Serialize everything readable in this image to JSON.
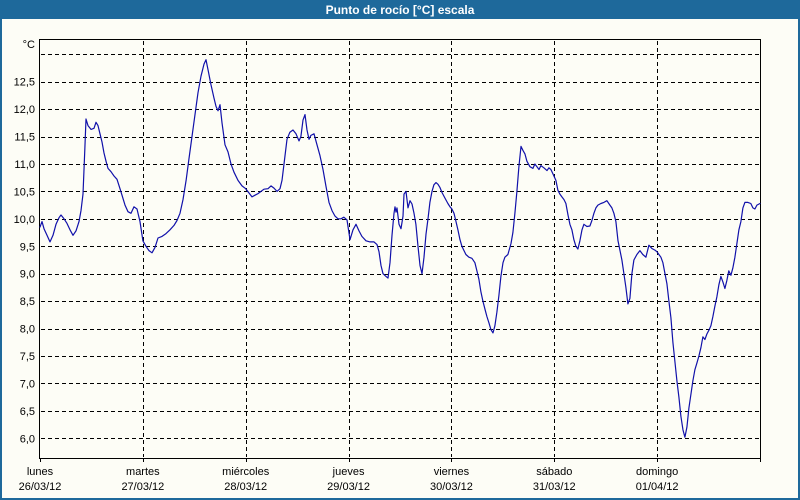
{
  "window": {
    "title": "Punto de rocío [°C] escala"
  },
  "colors": {
    "titlebar_bg": "#1e699b",
    "titlebar_text": "#ffffff",
    "frame": "#1e699b",
    "plot_bg": "#fdfdf6",
    "grid": "#000000",
    "axis": "#000000",
    "label_text": "#000000",
    "line": "#1111aa"
  },
  "chart_data": {
    "type": "line",
    "title": "Punto de rocío [°C] escala",
    "y_unit_label": "°C",
    "ylabel": "",
    "xlabel": "",
    "ylim": [
      5.64,
      13.26
    ],
    "y_grid_step": 0.5,
    "y_grid_values": [
      6.0,
      6.5,
      7.0,
      7.5,
      8.0,
      8.5,
      9.0,
      9.5,
      10.0,
      10.5,
      11.0,
      11.5,
      12.0,
      12.5,
      13.0
    ],
    "y_tick_labels": [
      "6,0",
      "6,5",
      "7,0",
      "7,5",
      "8,0",
      "8,5",
      "9,0",
      "9,5",
      "10,0",
      "10,5",
      "11,0",
      "11,5",
      "12,0",
      "12,5"
    ],
    "grid": "dashed",
    "legend_position": "none",
    "x_range_days": [
      0,
      7
    ],
    "x_categories": [
      {
        "day": "lunes",
        "date": "26/03/12"
      },
      {
        "day": "martes",
        "date": "27/03/12"
      },
      {
        "day": "miércoles",
        "date": "28/03/12"
      },
      {
        "day": "jueves",
        "date": "29/03/12"
      },
      {
        "day": "viernes",
        "date": "30/03/12"
      },
      {
        "day": "sábado",
        "date": "31/03/12"
      },
      {
        "day": "domingo",
        "date": "01/04/12"
      }
    ],
    "series": [
      {
        "name": "Punto de rocío",
        "points": [
          [
            0,
            9.85
          ],
          [
            0.019,
            9.95
          ],
          [
            0.039,
            9.82
          ],
          [
            0.068,
            9.7
          ],
          [
            0.097,
            9.58
          ],
          [
            0.126,
            9.7
          ],
          [
            0.156,
            9.9
          ],
          [
            0.185,
            10.02
          ],
          [
            0.204,
            10.07
          ],
          [
            0.233,
            10.0
          ],
          [
            0.262,
            9.92
          ],
          [
            0.292,
            9.8
          ],
          [
            0.321,
            9.7
          ],
          [
            0.35,
            9.78
          ],
          [
            0.379,
            9.95
          ],
          [
            0.399,
            10.15
          ],
          [
            0.418,
            10.45
          ],
          [
            0.437,
            11.3
          ],
          [
            0.447,
            11.82
          ],
          [
            0.467,
            11.7
          ],
          [
            0.496,
            11.63
          ],
          [
            0.525,
            11.65
          ],
          [
            0.544,
            11.76
          ],
          [
            0.564,
            11.7
          ],
          [
            0.583,
            11.55
          ],
          [
            0.603,
            11.4
          ],
          [
            0.622,
            11.2
          ],
          [
            0.642,
            11.05
          ],
          [
            0.661,
            10.92
          ],
          [
            0.69,
            10.86
          ],
          [
            0.719,
            10.78
          ],
          [
            0.749,
            10.72
          ],
          [
            0.778,
            10.55
          ],
          [
            0.797,
            10.43
          ],
          [
            0.826,
            10.25
          ],
          [
            0.856,
            10.13
          ],
          [
            0.885,
            10.1
          ],
          [
            0.914,
            10.22
          ],
          [
            0.943,
            10.18
          ],
          [
            0.972,
            9.95
          ],
          [
            1,
            9.6
          ],
          [
            1.031,
            9.5
          ],
          [
            1.06,
            9.42
          ],
          [
            1.089,
            9.38
          ],
          [
            1.118,
            9.48
          ],
          [
            1.147,
            9.65
          ],
          [
            1.186,
            9.68
          ],
          [
            1.225,
            9.73
          ],
          [
            1.264,
            9.8
          ],
          [
            1.303,
            9.88
          ],
          [
            1.332,
            9.97
          ],
          [
            1.361,
            10.1
          ],
          [
            1.39,
            10.35
          ],
          [
            1.42,
            10.7
          ],
          [
            1.449,
            11.1
          ],
          [
            1.478,
            11.5
          ],
          [
            1.507,
            11.9
          ],
          [
            1.536,
            12.3
          ],
          [
            1.565,
            12.6
          ],
          [
            1.594,
            12.82
          ],
          [
            1.614,
            12.9
          ],
          [
            1.633,
            12.72
          ],
          [
            1.662,
            12.45
          ],
          [
            1.692,
            12.2
          ],
          [
            1.711,
            12.05
          ],
          [
            1.731,
            11.97
          ],
          [
            1.75,
            12.08
          ],
          [
            1.769,
            11.75
          ],
          [
            1.799,
            11.35
          ],
          [
            1.828,
            11.22
          ],
          [
            1.857,
            11.0
          ],
          [
            1.886,
            10.85
          ],
          [
            1.925,
            10.7
          ],
          [
            1.964,
            10.6
          ],
          [
            2,
            10.55
          ],
          [
            2.032,
            10.47
          ],
          [
            2.061,
            10.4
          ],
          [
            2.09,
            10.43
          ],
          [
            2.119,
            10.46
          ],
          [
            2.149,
            10.5
          ],
          [
            2.178,
            10.54
          ],
          [
            2.217,
            10.55
          ],
          [
            2.246,
            10.6
          ],
          [
            2.275,
            10.56
          ],
          [
            2.304,
            10.5
          ],
          [
            2.333,
            10.55
          ],
          [
            2.353,
            10.7
          ],
          [
            2.372,
            11.0
          ],
          [
            2.401,
            11.45
          ],
          [
            2.43,
            11.58
          ],
          [
            2.46,
            11.62
          ],
          [
            2.489,
            11.55
          ],
          [
            2.518,
            11.42
          ],
          [
            2.537,
            11.5
          ],
          [
            2.557,
            11.8
          ],
          [
            2.576,
            11.9
          ],
          [
            2.596,
            11.62
          ],
          [
            2.615,
            11.45
          ],
          [
            2.634,
            11.52
          ],
          [
            2.664,
            11.55
          ],
          [
            2.693,
            11.35
          ],
          [
            2.722,
            11.15
          ],
          [
            2.751,
            10.9
          ],
          [
            2.78,
            10.6
          ],
          [
            2.81,
            10.3
          ],
          [
            2.839,
            10.15
          ],
          [
            2.868,
            10.05
          ],
          [
            2.897,
            10.0
          ],
          [
            2.926,
            10.0
          ],
          [
            2.955,
            10.03
          ],
          [
            2.985,
            9.98
          ],
          [
            3.014,
            9.62
          ],
          [
            3.043,
            9.8
          ],
          [
            3.072,
            9.9
          ],
          [
            3.101,
            9.78
          ],
          [
            3.13,
            9.68
          ],
          [
            3.169,
            9.6
          ],
          [
            3.208,
            9.58
          ],
          [
            3.247,
            9.58
          ],
          [
            3.276,
            9.53
          ],
          [
            3.296,
            9.4
          ],
          [
            3.315,
            9.15
          ],
          [
            3.335,
            9.0
          ],
          [
            3.364,
            8.95
          ],
          [
            3.383,
            8.92
          ],
          [
            3.403,
            9.2
          ],
          [
            3.422,
            9.7
          ],
          [
            3.442,
            10.1
          ],
          [
            3.451,
            10.22
          ],
          [
            3.461,
            10.12
          ],
          [
            3.471,
            10.2
          ],
          [
            3.49,
            9.9
          ],
          [
            3.51,
            9.82
          ],
          [
            3.529,
            10.05
          ],
          [
            3.539,
            10.45
          ],
          [
            3.558,
            10.5
          ],
          [
            3.578,
            10.2
          ],
          [
            3.597,
            10.33
          ],
          [
            3.617,
            10.27
          ],
          [
            3.636,
            10.1
          ],
          [
            3.655,
            9.9
          ],
          [
            3.675,
            9.5
          ],
          [
            3.694,
            9.15
          ],
          [
            3.714,
            9.0
          ],
          [
            3.733,
            9.3
          ],
          [
            3.753,
            9.72
          ],
          [
            3.772,
            10.0
          ],
          [
            3.791,
            10.3
          ],
          [
            3.811,
            10.5
          ],
          [
            3.83,
            10.62
          ],
          [
            3.85,
            10.66
          ],
          [
            3.869,
            10.63
          ],
          [
            3.889,
            10.57
          ],
          [
            3.908,
            10.48
          ],
          [
            3.937,
            10.38
          ],
          [
            3.966,
            10.28
          ],
          [
            3.986,
            10.22
          ],
          [
            4.005,
            10.18
          ],
          [
            4.025,
            10.1
          ],
          [
            4.044,
            9.95
          ],
          [
            4.063,
            9.8
          ],
          [
            4.083,
            9.62
          ],
          [
            4.102,
            9.5
          ],
          [
            4.122,
            9.42
          ],
          [
            4.141,
            9.35
          ],
          [
            4.17,
            9.3
          ],
          [
            4.199,
            9.28
          ],
          [
            4.228,
            9.2
          ],
          [
            4.248,
            9.05
          ],
          [
            4.267,
            8.9
          ],
          [
            4.287,
            8.67
          ],
          [
            4.306,
            8.5
          ],
          [
            4.326,
            8.35
          ],
          [
            4.345,
            8.22
          ],
          [
            4.365,
            8.1
          ],
          [
            4.384,
            7.98
          ],
          [
            4.404,
            7.92
          ],
          [
            4.423,
            8.05
          ],
          [
            4.442,
            8.3
          ],
          [
            4.462,
            8.6
          ],
          [
            4.481,
            8.95
          ],
          [
            4.501,
            9.2
          ],
          [
            4.52,
            9.3
          ],
          [
            4.549,
            9.35
          ],
          [
            4.579,
            9.55
          ],
          [
            4.598,
            9.75
          ],
          [
            4.617,
            10.1
          ],
          [
            4.637,
            10.5
          ],
          [
            4.656,
            10.95
          ],
          [
            4.676,
            11.32
          ],
          [
            4.695,
            11.25
          ],
          [
            4.715,
            11.18
          ],
          [
            4.734,
            11.05
          ],
          [
            4.763,
            10.95
          ],
          [
            4.792,
            10.92
          ],
          [
            4.812,
            11.0
          ],
          [
            4.831,
            10.95
          ],
          [
            4.851,
            10.9
          ],
          [
            4.87,
            10.97
          ],
          [
            4.899,
            10.93
          ],
          [
            4.929,
            10.88
          ],
          [
            4.948,
            10.93
          ],
          [
            4.967,
            10.9
          ],
          [
            4.987,
            10.82
          ],
          [
            5.016,
            10.7
          ],
          [
            5.035,
            10.52
          ],
          [
            5.055,
            10.45
          ],
          [
            5.074,
            10.4
          ],
          [
            5.094,
            10.35
          ],
          [
            5.113,
            10.28
          ],
          [
            5.133,
            10.07
          ],
          [
            5.152,
            9.9
          ],
          [
            5.171,
            9.8
          ],
          [
            5.191,
            9.62
          ],
          [
            5.21,
            9.5
          ],
          [
            5.23,
            9.45
          ],
          [
            5.249,
            9.6
          ],
          [
            5.269,
            9.8
          ],
          [
            5.288,
            9.9
          ],
          [
            5.317,
            9.86
          ],
          [
            5.346,
            9.87
          ],
          [
            5.366,
            9.97
          ],
          [
            5.385,
            10.1
          ],
          [
            5.405,
            10.2
          ],
          [
            5.424,
            10.25
          ],
          [
            5.453,
            10.28
          ],
          [
            5.482,
            10.3
          ],
          [
            5.512,
            10.33
          ],
          [
            5.541,
            10.25
          ],
          [
            5.56,
            10.2
          ],
          [
            5.58,
            10.1
          ],
          [
            5.599,
            9.95
          ],
          [
            5.619,
            9.6
          ],
          [
            5.638,
            9.43
          ],
          [
            5.657,
            9.25
          ],
          [
            5.677,
            9.0
          ],
          [
            5.696,
            8.75
          ],
          [
            5.716,
            8.45
          ],
          [
            5.735,
            8.55
          ],
          [
            5.755,
            9.0
          ],
          [
            5.774,
            9.25
          ],
          [
            5.803,
            9.35
          ],
          [
            5.832,
            9.42
          ],
          [
            5.861,
            9.35
          ],
          [
            5.891,
            9.3
          ],
          [
            5.92,
            9.52
          ],
          [
            5.949,
            9.46
          ],
          [
            5.978,
            9.43
          ],
          [
            5.998,
            9.4
          ],
          [
            6.017,
            9.35
          ],
          [
            6.037,
            9.3
          ],
          [
            6.056,
            9.2
          ],
          [
            6.076,
            9.0
          ],
          [
            6.095,
            8.82
          ],
          [
            6.114,
            8.5
          ],
          [
            6.134,
            8.2
          ],
          [
            6.153,
            7.75
          ],
          [
            6.173,
            7.4
          ],
          [
            6.192,
            7.05
          ],
          [
            6.212,
            6.75
          ],
          [
            6.231,
            6.4
          ],
          [
            6.251,
            6.15
          ],
          [
            6.27,
            6.02
          ],
          [
            6.289,
            6.2
          ],
          [
            6.309,
            6.55
          ],
          [
            6.328,
            6.8
          ],
          [
            6.348,
            7.05
          ],
          [
            6.367,
            7.25
          ],
          [
            6.387,
            7.37
          ],
          [
            6.406,
            7.5
          ],
          [
            6.425,
            7.65
          ],
          [
            6.445,
            7.85
          ],
          [
            6.464,
            7.8
          ],
          [
            6.484,
            7.9
          ],
          [
            6.503,
            7.97
          ],
          [
            6.523,
            8.05
          ],
          [
            6.542,
            8.22
          ],
          [
            6.561,
            8.4
          ],
          [
            6.581,
            8.58
          ],
          [
            6.6,
            8.8
          ],
          [
            6.62,
            8.95
          ],
          [
            6.639,
            8.85
          ],
          [
            6.659,
            8.73
          ],
          [
            6.678,
            8.88
          ],
          [
            6.697,
            9.05
          ],
          [
            6.717,
            8.97
          ],
          [
            6.736,
            9.1
          ],
          [
            6.756,
            9.3
          ],
          [
            6.775,
            9.55
          ],
          [
            6.795,
            9.8
          ],
          [
            6.814,
            9.95
          ],
          [
            6.834,
            10.2
          ],
          [
            6.853,
            10.3
          ],
          [
            6.882,
            10.3
          ],
          [
            6.911,
            10.28
          ],
          [
            6.931,
            10.2
          ],
          [
            6.95,
            10.18
          ],
          [
            6.97,
            10.25
          ],
          [
            7,
            10.28
          ]
        ]
      }
    ]
  }
}
